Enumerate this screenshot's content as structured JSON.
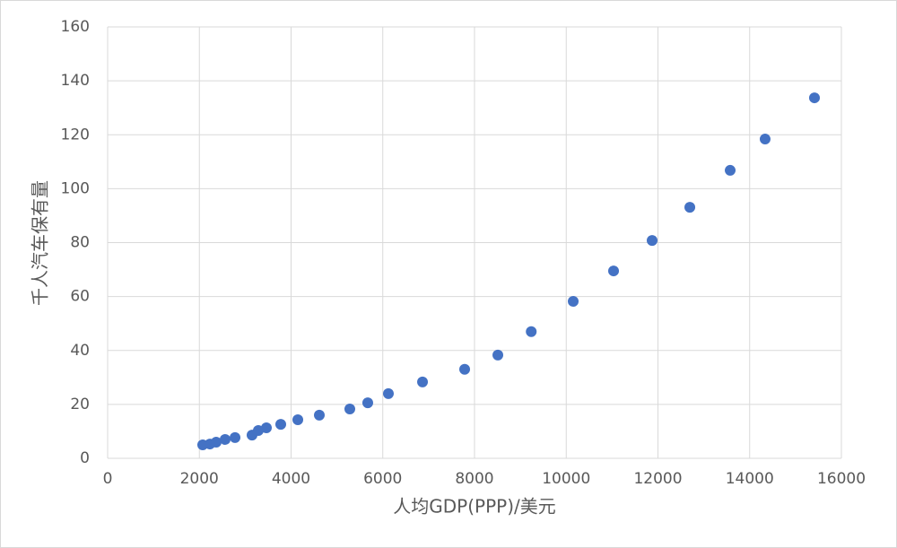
{
  "chart_data": {
    "type": "scatter",
    "x_label": "人均GDP(PPP)/美元",
    "y_label": "千人汽车保有量",
    "color": "#4472c4",
    "grid": true,
    "xlim": [
      0,
      16000
    ],
    "xticks": [
      0,
      2000,
      4000,
      6000,
      8000,
      10000,
      12000,
      14000,
      16000
    ],
    "ylim": [
      0,
      160
    ],
    "yticks": [
      0,
      20,
      40,
      60,
      80,
      100,
      120,
      140,
      160
    ],
    "x": [
      2073,
      2230,
      2367,
      2562,
      2778,
      3149,
      3286,
      3462,
      3775,
      4147,
      4616,
      5281,
      5672,
      6122,
      6866,
      7785,
      8509,
      9237,
      10152,
      11032,
      11873,
      12695,
      13575,
      14337,
      15413
    ],
    "values": [
      5.0,
      5.3,
      6.0,
      7.0,
      7.7,
      8.6,
      10.3,
      11.3,
      12.6,
      14.3,
      16.0,
      18.3,
      20.6,
      24.0,
      28.3,
      33.0,
      38.3,
      47.0,
      58.2,
      69.5,
      80.8,
      93.1,
      106.8,
      118.4,
      133.7
    ]
  }
}
